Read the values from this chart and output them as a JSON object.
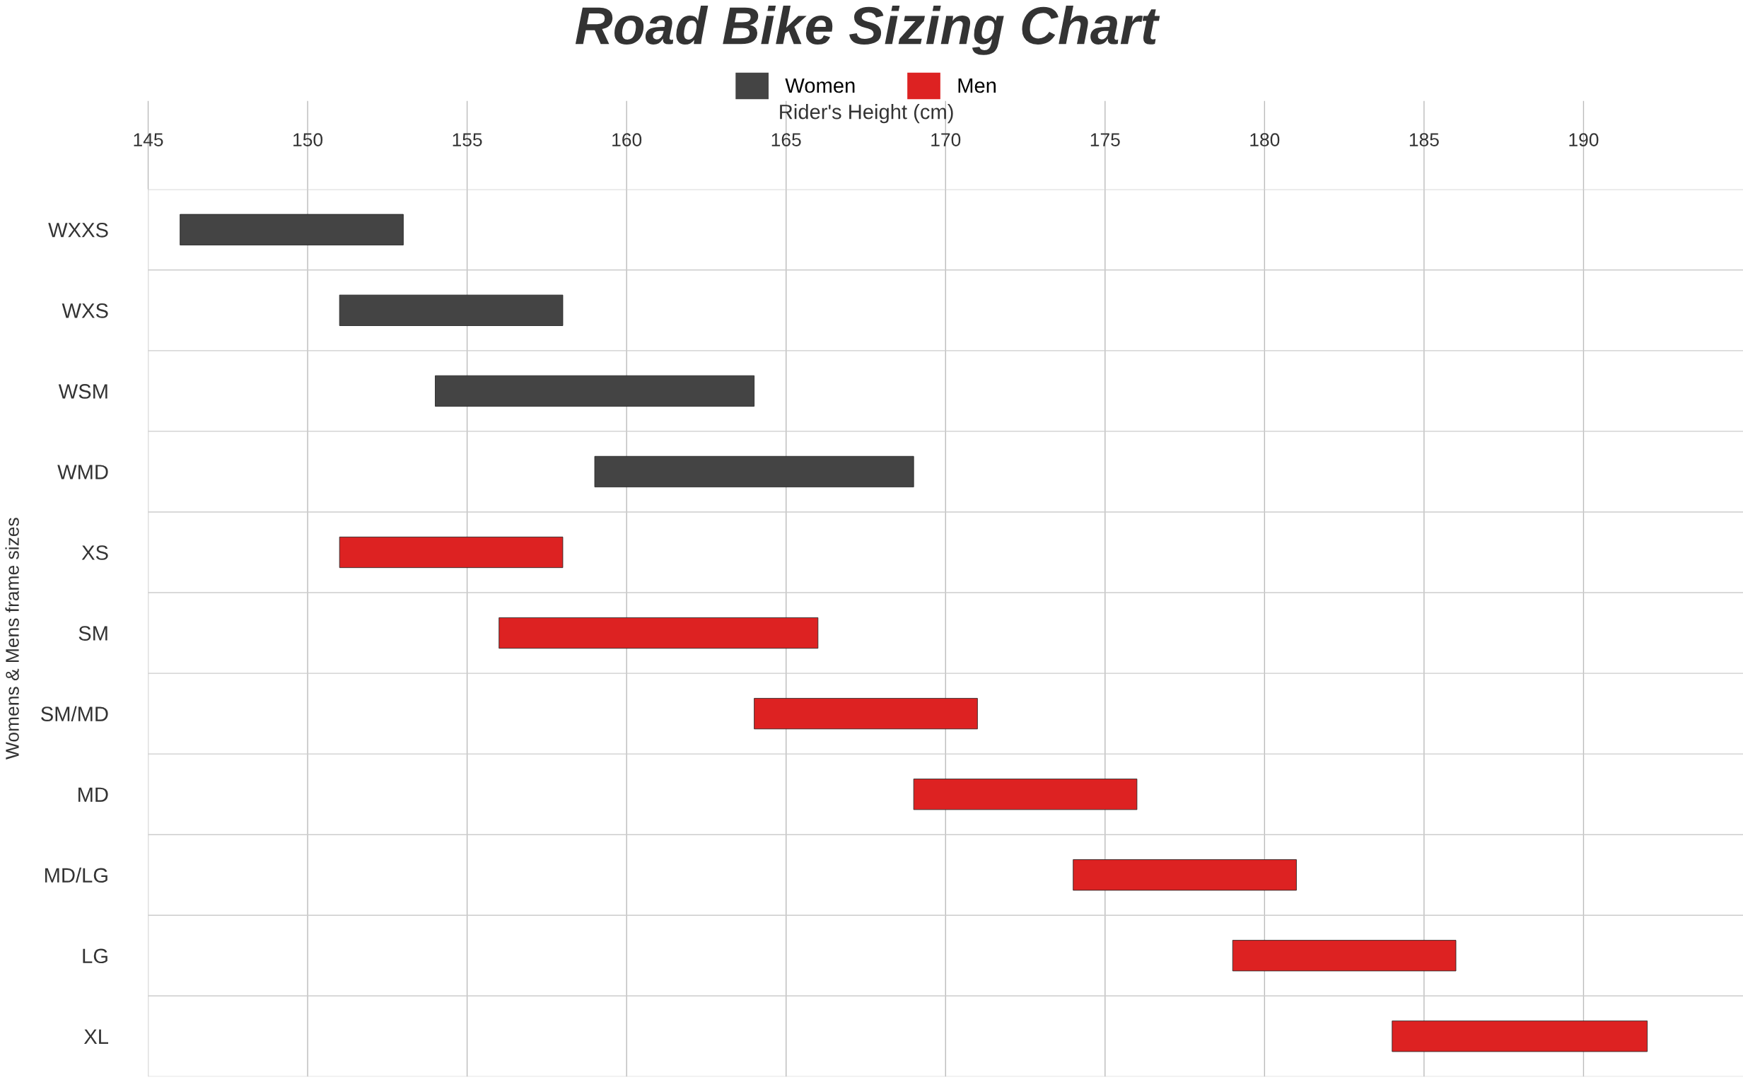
{
  "chart_data": {
    "type": "bar",
    "orientation": "horizontal",
    "title": "Road Bike Sizing Chart",
    "xlabel": "Rider's Height (cm)",
    "ylabel": "Womens & Mens frame sizes",
    "categories": [
      "WXXS",
      "WXS",
      "WSM",
      "WMD",
      "XS",
      "SM",
      "SM/MD",
      "MD",
      "MD/LG",
      "LG",
      "XL"
    ],
    "series": [
      {
        "name": "Women",
        "color": "#444444",
        "base": [
          146,
          151,
          154,
          159,
          null,
          null,
          null,
          null,
          null,
          null,
          null
        ],
        "values": [
          7,
          7,
          10,
          10,
          null,
          null,
          null,
          null,
          null,
          null,
          null
        ]
      },
      {
        "name": "Men",
        "color": "#dd2222",
        "base": [
          null,
          null,
          null,
          null,
          151,
          156,
          164,
          169,
          174,
          179,
          184
        ],
        "values": [
          null,
          null,
          null,
          null,
          7,
          10,
          7,
          7,
          7,
          7,
          8
        ]
      }
    ],
    "xlim": [
      145,
      195
    ],
    "xticks": [
      145,
      150,
      155,
      160,
      165,
      170,
      175,
      180,
      185,
      190
    ],
    "grid": true,
    "legend": "top"
  }
}
